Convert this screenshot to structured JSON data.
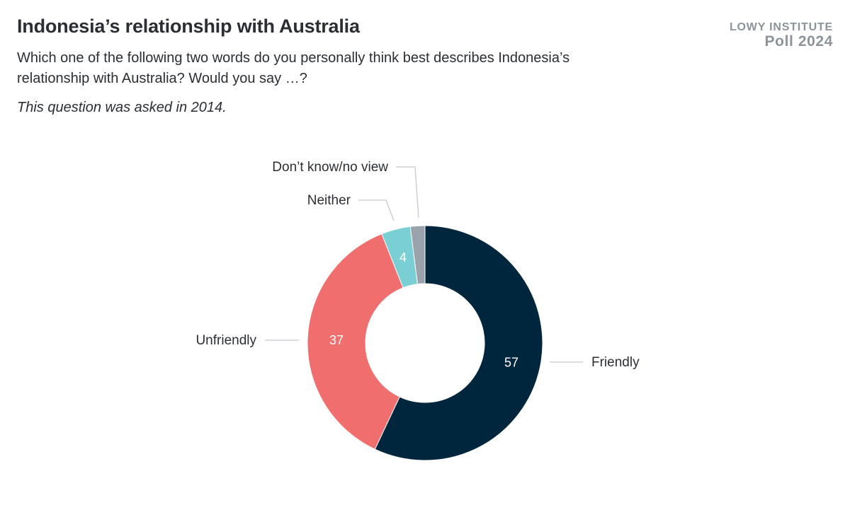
{
  "header": {
    "title": "Indonesia’s relationship with Australia",
    "subtitle": "Which one of the following two words do you personally think best describes Indonesia’s relationship with Australia? Would you say …?",
    "note": "This question was asked in 2014."
  },
  "brand": {
    "name": "LOWY INSTITUTE",
    "sub": "Poll 2024"
  },
  "chart_data": {
    "type": "pie",
    "donut": true,
    "categories": [
      "Friendly",
      "Unfriendly",
      "Neither",
      "Don’t know/no view"
    ],
    "values": [
      57,
      37,
      4,
      2
    ],
    "value_labels": [
      "57",
      "37",
      "4",
      ""
    ],
    "colors": [
      "#00263e",
      "#f06e6e",
      "#79cfd4",
      "#9aa3ab"
    ],
    "legend": "none"
  }
}
